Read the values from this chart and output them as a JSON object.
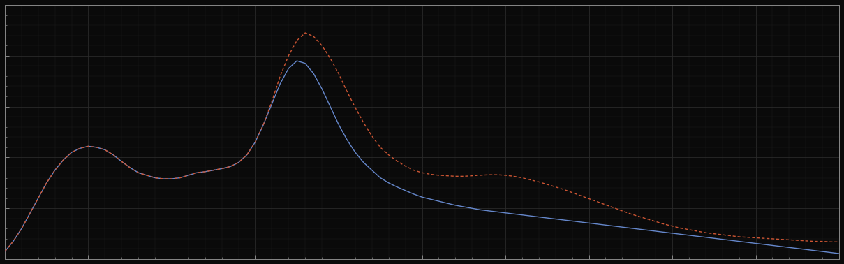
{
  "background_color": "#0a0a0a",
  "plot_bg_color": "#0a0a0a",
  "figure_size": [
    12.09,
    3.78
  ],
  "dpi": 100,
  "xlim": [
    0,
    100
  ],
  "ylim": [
    0,
    5
  ],
  "blue_line_color": "#6688cc",
  "red_line_color": "#cc5533",
  "blue_x": [
    0,
    1,
    2,
    3,
    4,
    5,
    6,
    7,
    8,
    9,
    10,
    11,
    12,
    13,
    14,
    15,
    16,
    17,
    18,
    19,
    20,
    21,
    22,
    23,
    24,
    25,
    26,
    27,
    28,
    29,
    30,
    31,
    32,
    33,
    34,
    35,
    36,
    37,
    38,
    39,
    40,
    41,
    42,
    43,
    44,
    45,
    46,
    47,
    48,
    49,
    50,
    51,
    52,
    53,
    54,
    55,
    56,
    57,
    58,
    59,
    60,
    61,
    62,
    63,
    64,
    65,
    66,
    67,
    68,
    69,
    70,
    71,
    72,
    73,
    74,
    75,
    76,
    77,
    78,
    79,
    80,
    81,
    82,
    83,
    84,
    85,
    86,
    87,
    88,
    89,
    90,
    91,
    92,
    93,
    94,
    95,
    96,
    97,
    98,
    99,
    100
  ],
  "blue_y": [
    0.15,
    0.35,
    0.6,
    0.9,
    1.2,
    1.5,
    1.75,
    1.95,
    2.1,
    2.18,
    2.22,
    2.2,
    2.15,
    2.05,
    1.92,
    1.8,
    1.7,
    1.65,
    1.6,
    1.58,
    1.58,
    1.6,
    1.65,
    1.7,
    1.72,
    1.75,
    1.78,
    1.82,
    1.9,
    2.05,
    2.3,
    2.65,
    3.05,
    3.45,
    3.75,
    3.9,
    3.85,
    3.65,
    3.35,
    3.0,
    2.65,
    2.35,
    2.1,
    1.9,
    1.75,
    1.6,
    1.5,
    1.42,
    1.35,
    1.28,
    1.22,
    1.18,
    1.14,
    1.1,
    1.06,
    1.03,
    1.0,
    0.97,
    0.95,
    0.93,
    0.91,
    0.89,
    0.87,
    0.85,
    0.83,
    0.81,
    0.79,
    0.77,
    0.75,
    0.73,
    0.71,
    0.69,
    0.67,
    0.65,
    0.63,
    0.61,
    0.59,
    0.57,
    0.55,
    0.53,
    0.51,
    0.49,
    0.47,
    0.45,
    0.43,
    0.41,
    0.39,
    0.37,
    0.35,
    0.33,
    0.31,
    0.29,
    0.27,
    0.25,
    0.23,
    0.21,
    0.19,
    0.17,
    0.15,
    0.13,
    0.11
  ],
  "red_x": [
    0,
    1,
    2,
    3,
    4,
    5,
    6,
    7,
    8,
    9,
    10,
    11,
    12,
    13,
    14,
    15,
    16,
    17,
    18,
    19,
    20,
    21,
    22,
    23,
    24,
    25,
    26,
    27,
    28,
    29,
    30,
    31,
    32,
    33,
    34,
    35,
    36,
    37,
    38,
    39,
    40,
    41,
    42,
    43,
    44,
    45,
    46,
    47,
    48,
    49,
    50,
    51,
    52,
    53,
    54,
    55,
    56,
    57,
    58,
    59,
    60,
    61,
    62,
    63,
    64,
    65,
    66,
    67,
    68,
    69,
    70,
    71,
    72,
    73,
    74,
    75,
    76,
    77,
    78,
    79,
    80,
    81,
    82,
    83,
    84,
    85,
    86,
    87,
    88,
    89,
    90,
    91,
    92,
    93,
    94,
    95,
    96,
    97,
    98,
    99,
    100
  ],
  "red_y": [
    0.15,
    0.35,
    0.6,
    0.9,
    1.2,
    1.5,
    1.75,
    1.95,
    2.1,
    2.18,
    2.22,
    2.2,
    2.15,
    2.05,
    1.92,
    1.8,
    1.7,
    1.65,
    1.6,
    1.58,
    1.58,
    1.6,
    1.65,
    1.7,
    1.72,
    1.75,
    1.78,
    1.82,
    1.9,
    2.05,
    2.3,
    2.65,
    3.1,
    3.6,
    4.0,
    4.3,
    4.45,
    4.38,
    4.2,
    3.95,
    3.65,
    3.3,
    2.98,
    2.68,
    2.42,
    2.2,
    2.05,
    1.93,
    1.83,
    1.75,
    1.7,
    1.67,
    1.65,
    1.64,
    1.63,
    1.63,
    1.64,
    1.65,
    1.66,
    1.66,
    1.65,
    1.63,
    1.6,
    1.56,
    1.52,
    1.47,
    1.42,
    1.37,
    1.31,
    1.25,
    1.19,
    1.13,
    1.07,
    1.01,
    0.95,
    0.89,
    0.84,
    0.79,
    0.74,
    0.69,
    0.65,
    0.61,
    0.58,
    0.55,
    0.52,
    0.5,
    0.48,
    0.46,
    0.44,
    0.43,
    0.42,
    0.41,
    0.4,
    0.39,
    0.38,
    0.37,
    0.36,
    0.35,
    0.35,
    0.34,
    0.34
  ],
  "spine_color": "#888888",
  "tick_color": "#888888",
  "minor_grid_color": "#1e1e1e",
  "major_grid_color": "#2a2a2a"
}
